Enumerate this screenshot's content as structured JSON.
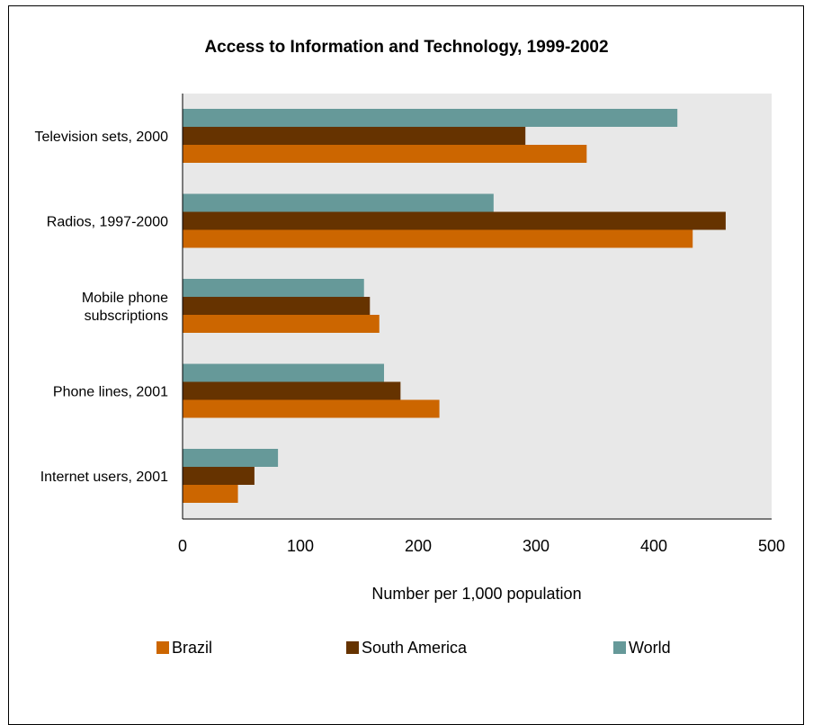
{
  "chart_data": {
    "type": "bar",
    "orientation": "horizontal",
    "title": "Access to Information and Technology, 1999-2002",
    "xlabel": "Number per 1,000 population",
    "ylabel": "",
    "xlim": [
      0,
      500
    ],
    "x_ticks": [
      0,
      100,
      200,
      300,
      400,
      500
    ],
    "grid": false,
    "background": "#e8e8e8",
    "legend_position": "bottom",
    "categories": [
      [
        "Television sets, 2000"
      ],
      [
        "Radios, 1997-2000"
      ],
      [
        "Mobile phone",
        "subscriptions"
      ],
      [
        "Phone lines, 2001"
      ],
      [
        "Internet users, 2001"
      ]
    ],
    "series": [
      {
        "name": "World",
        "color": "#669999",
        "values": [
          420,
          264,
          154,
          171,
          81
        ]
      },
      {
        "name": "South America",
        "color": "#663300",
        "values": [
          291,
          461,
          159,
          185,
          61
        ]
      },
      {
        "name": "Brazil",
        "color": "#cc6600",
        "values": [
          343,
          433,
          167,
          218,
          47
        ]
      }
    ],
    "legend_order": [
      "Brazil",
      "South America",
      "World"
    ]
  }
}
